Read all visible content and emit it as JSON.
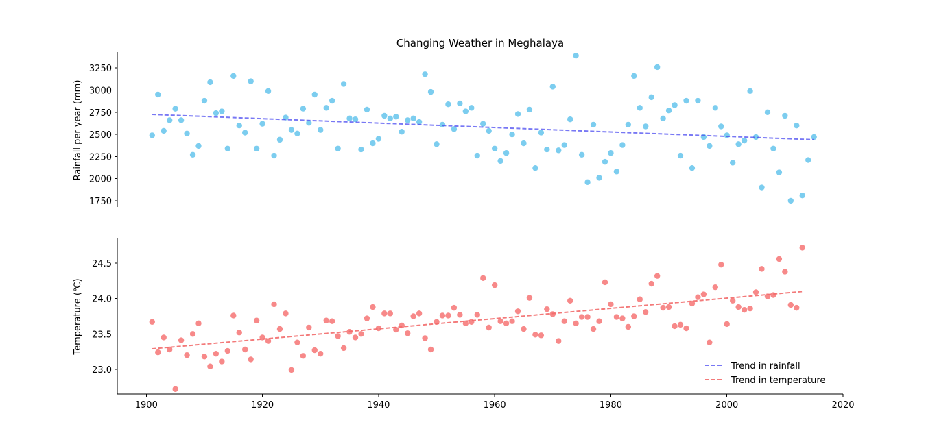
{
  "chart_data": [
    {
      "type": "scatter",
      "title": "Changing Weather in Meghalaya",
      "ylabel": "Rainfall per year (mm)",
      "xlim": [
        1895,
        2020
      ],
      "ylim": [
        1680,
        3430
      ],
      "x_ticks": [
        1900,
        1920,
        1940,
        1960,
        1980,
        2000,
        2020
      ],
      "y_ticks": [
        1750,
        2000,
        2250,
        2500,
        2750,
        3000,
        3250
      ],
      "series": [
        {
          "kind": "points",
          "color": "#5BC0EB",
          "x": [
            1901,
            1902,
            1903,
            1904,
            1905,
            1906,
            1907,
            1908,
            1909,
            1910,
            1911,
            1912,
            1913,
            1914,
            1915,
            1916,
            1917,
            1918,
            1919,
            1920,
            1921,
            1922,
            1923,
            1924,
            1925,
            1926,
            1927,
            1928,
            1929,
            1930,
            1931,
            1932,
            1933,
            1934,
            1935,
            1936,
            1937,
            1938,
            1939,
            1940,
            1941,
            1942,
            1943,
            1944,
            1945,
            1946,
            1947,
            1948,
            1949,
            1950,
            1951,
            1952,
            1953,
            1954,
            1955,
            1956,
            1957,
            1958,
            1959,
            1960,
            1961,
            1962,
            1963,
            1964,
            1965,
            1966,
            1967,
            1968,
            1969,
            1970,
            1971,
            1972,
            1973,
            1974,
            1975,
            1976,
            1977,
            1978,
            1979,
            1980,
            1981,
            1982,
            1983,
            1984,
            1985,
            1986,
            1987,
            1988,
            1989,
            1990,
            1991,
            1992,
            1993,
            1994,
            1995,
            1996,
            1997,
            1998,
            1999,
            2000,
            2001,
            2002,
            2003,
            2004,
            2005,
            2006,
            2007,
            2008,
            2009,
            2010,
            2011,
            2012,
            2013,
            2014,
            2015
          ],
          "y": [
            2490,
            2950,
            2540,
            2660,
            2790,
            2660,
            2510,
            2270,
            2370,
            2880,
            3090,
            2740,
            2760,
            2340,
            3160,
            2600,
            2520,
            3100,
            2340,
            2620,
            2990,
            2260,
            2440,
            2690,
            2550,
            2510,
            2790,
            2630,
            2950,
            2550,
            2800,
            2880,
            2340,
            3070,
            2680,
            2670,
            2330,
            2780,
            2400,
            2450,
            2710,
            2680,
            2700,
            2530,
            2660,
            2680,
            2640,
            3180,
            2980,
            2390,
            2610,
            2840,
            2560,
            2850,
            2760,
            2800,
            2260,
            2620,
            2540,
            2340,
            2200,
            2290,
            2500,
            2730,
            2400,
            2780,
            2120,
            2520,
            2330,
            3040,
            2320,
            2380,
            2670,
            3390,
            2270,
            1960,
            2610,
            2010,
            2190,
            2290,
            2080,
            2380,
            2610,
            3160,
            2800,
            2590,
            2920,
            3260,
            2680,
            2770,
            2830,
            2260,
            2880,
            2120,
            2880,
            2470,
            2370,
            2800,
            2590,
            2490,
            2180,
            2390,
            2430,
            2990,
            2470,
            1900,
            2750,
            2340,
            2070,
            2710,
            1750,
            2600,
            1810,
            2210,
            2470
          ]
        },
        {
          "kind": "trend",
          "color": "#4B4BF0",
          "name": "Trend in rainfall",
          "x": [
            1901,
            2015
          ],
          "y": [
            2725,
            2440
          ]
        }
      ]
    },
    {
      "type": "scatter",
      "xlabel": "",
      "ylabel": "Temperature (℃)",
      "xlim": [
        1895,
        2020
      ],
      "ylim": [
        22.65,
        24.85
      ],
      "x_ticks": [
        1900,
        1920,
        1940,
        1960,
        1980,
        2000,
        2020
      ],
      "y_ticks": [
        "23.0",
        "23.5",
        "24.0",
        "24.5"
      ],
      "series": [
        {
          "kind": "points",
          "color": "#F23A3A",
          "x": [
            1901,
            1902,
            1903,
            1904,
            1905,
            1906,
            1907,
            1908,
            1909,
            1910,
            1911,
            1912,
            1913,
            1914,
            1915,
            1916,
            1917,
            1918,
            1919,
            1920,
            1921,
            1922,
            1923,
            1924,
            1925,
            1926,
            1927,
            1928,
            1929,
            1930,
            1931,
            1932,
            1933,
            1934,
            1935,
            1936,
            1937,
            1938,
            1939,
            1940,
            1941,
            1942,
            1943,
            1944,
            1945,
            1946,
            1947,
            1948,
            1949,
            1950,
            1951,
            1952,
            1953,
            1954,
            1955,
            1956,
            1957,
            1958,
            1959,
            1960,
            1961,
            1962,
            1963,
            1964,
            1965,
            1966,
            1967,
            1968,
            1969,
            1970,
            1971,
            1972,
            1973,
            1974,
            1975,
            1976,
            1977,
            1978,
            1979,
            1980,
            1981,
            1982,
            1983,
            1984,
            1985,
            1986,
            1987,
            1988,
            1989,
            1990,
            1991,
            1992,
            1993,
            1994,
            1995,
            1996,
            1997,
            1998,
            1999,
            2000,
            2001,
            2002,
            2003,
            2004,
            2005,
            2006,
            2007,
            2008,
            2009,
            2010,
            2011,
            2012,
            2013
          ],
          "y": [
            23.67,
            23.24,
            23.45,
            23.28,
            22.72,
            23.41,
            23.2,
            23.5,
            23.65,
            23.18,
            23.04,
            23.22,
            23.11,
            23.26,
            23.76,
            23.52,
            23.28,
            23.14,
            23.69,
            23.45,
            23.4,
            23.92,
            23.57,
            23.79,
            22.99,
            23.38,
            23.19,
            23.59,
            23.27,
            23.22,
            23.69,
            23.68,
            23.47,
            23.3,
            23.53,
            23.45,
            23.5,
            23.72,
            23.88,
            23.58,
            23.79,
            23.79,
            23.56,
            23.62,
            23.51,
            23.75,
            23.79,
            23.44,
            23.28,
            23.67,
            23.76,
            23.76,
            23.87,
            23.77,
            23.65,
            23.67,
            23.77,
            24.29,
            23.59,
            24.19,
            23.68,
            23.65,
            23.68,
            23.82,
            23.57,
            24.01,
            23.49,
            23.48,
            23.85,
            23.78,
            23.4,
            23.68,
            23.97,
            23.65,
            23.74,
            23.74,
            23.57,
            23.68,
            24.23,
            23.92,
            23.74,
            23.72,
            23.6,
            23.75,
            23.99,
            23.81,
            24.21,
            24.32,
            23.87,
            23.88,
            23.61,
            23.63,
            23.58,
            23.93,
            24.02,
            24.06,
            23.38,
            24.16,
            24.48,
            23.64,
            23.97,
            23.88,
            23.84,
            23.86,
            24.09,
            24.42,
            24.03,
            24.05,
            24.56,
            24.38,
            23.91,
            23.87,
            24.72
          ]
        },
        {
          "kind": "trend",
          "color": "#F26B6B",
          "name": "Trend in temperature",
          "x": [
            1901,
            2013
          ],
          "y": [
            23.29,
            24.1
          ]
        }
      ]
    }
  ]
}
